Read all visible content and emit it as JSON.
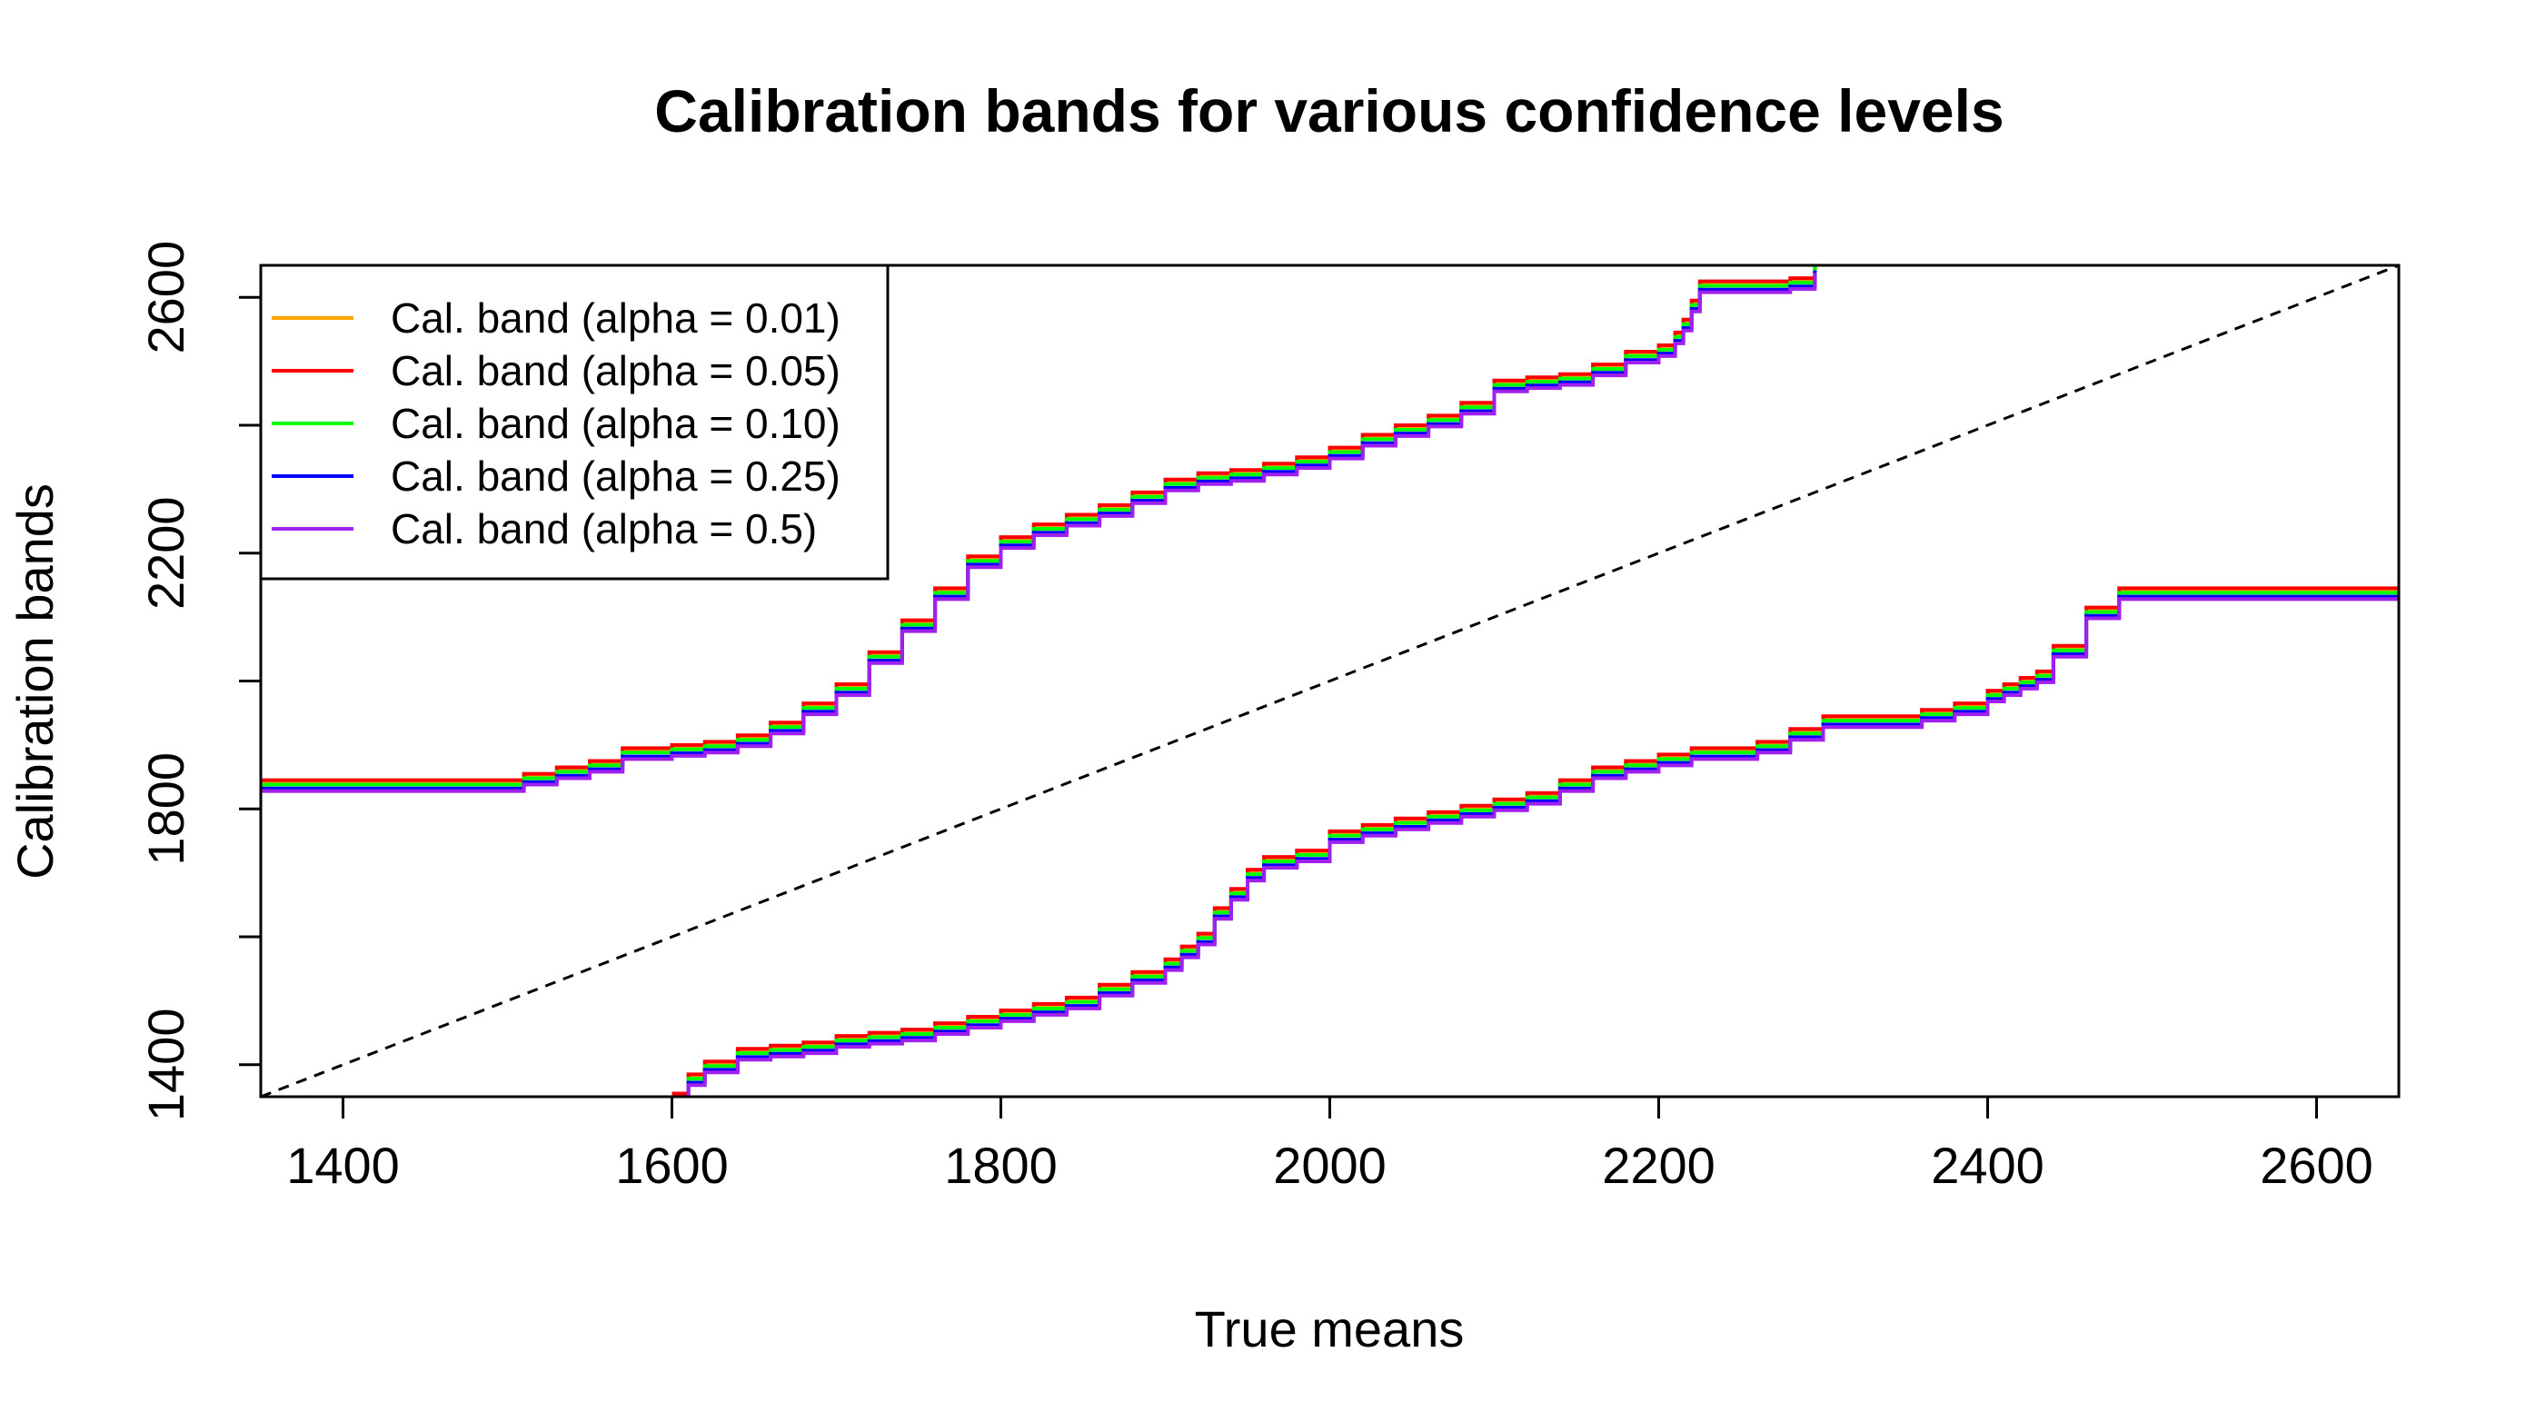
{
  "chart_data": {
    "type": "line",
    "title": "Calibration bands for various confidence levels",
    "xlabel": "True means",
    "ylabel": "Calibration bands",
    "xlim": [
      1350,
      2650
    ],
    "ylim": [
      1350,
      2650
    ],
    "x_ticks": [
      "1400",
      "1600",
      "1800",
      "2000",
      "2200",
      "2400",
      "2600"
    ],
    "y_ticks": [
      "1400",
      "1800",
      "2200",
      "2600"
    ],
    "y_minor_ticks": [
      1400,
      1600,
      1800,
      2000,
      2200,
      2400,
      2600
    ],
    "legend_position": "top-left",
    "reference_line": {
      "name": "identity",
      "style": "dashed",
      "color": "#000000",
      "x": [
        1350,
        2650
      ],
      "y": [
        1350,
        2650
      ]
    },
    "base_upper": {
      "x": [
        1350,
        1500,
        1510,
        1530,
        1550,
        1570,
        1600,
        1620,
        1640,
        1660,
        1680,
        1700,
        1720,
        1740,
        1760,
        1780,
        1800,
        1820,
        1840,
        1860,
        1880,
        1900,
        1920,
        1940,
        1960,
        1980,
        2000,
        2020,
        2040,
        2060,
        2080,
        2100,
        2120,
        2140,
        2160,
        2180,
        2200,
        2210,
        2215,
        2220,
        2225,
        2240,
        2260,
        2280,
        2295
      ],
      "y": [
        1840,
        1840,
        1850,
        1860,
        1870,
        1890,
        1895,
        1900,
        1910,
        1930,
        1960,
        1990,
        2040,
        2090,
        2140,
        2190,
        2220,
        2240,
        2255,
        2270,
        2290,
        2310,
        2320,
        2325,
        2335,
        2345,
        2360,
        2380,
        2395,
        2410,
        2430,
        2465,
        2470,
        2475,
        2490,
        2510,
        2520,
        2540,
        2560,
        2590,
        2620,
        2620,
        2620,
        2625,
        2650
      ]
    },
    "base_lower": {
      "x": [
        1600,
        1610,
        1620,
        1640,
        1660,
        1680,
        1700,
        1720,
        1740,
        1760,
        1780,
        1800,
        1820,
        1840,
        1860,
        1880,
        1900,
        1910,
        1920,
        1930,
        1940,
        1950,
        1960,
        1980,
        2000,
        2020,
        2040,
        2060,
        2080,
        2100,
        2120,
        2140,
        2160,
        2180,
        2200,
        2220,
        2240,
        2260,
        2280,
        2300,
        2320,
        2340,
        2360,
        2380,
        2400,
        2410,
        2420,
        2430,
        2440,
        2460,
        2480,
        2650
      ],
      "y": [
        1350,
        1380,
        1400,
        1420,
        1425,
        1430,
        1440,
        1445,
        1450,
        1460,
        1470,
        1480,
        1490,
        1500,
        1520,
        1540,
        1560,
        1580,
        1600,
        1640,
        1670,
        1700,
        1720,
        1730,
        1760,
        1770,
        1780,
        1790,
        1800,
        1810,
        1820,
        1840,
        1860,
        1870,
        1880,
        1890,
        1890,
        1900,
        1920,
        1940,
        1940,
        1940,
        1950,
        1960,
        1980,
        1990,
        2000,
        2010,
        2050,
        2110,
        2140,
        2140
      ]
    },
    "series": [
      {
        "name": "Cal. band (alpha = 0.01)",
        "color": "#FFA500",
        "offset": 0
      },
      {
        "name": "Cal. band (alpha = 0.05)",
        "color": "#FF0000",
        "offset": 5
      },
      {
        "name": "Cal. band (alpha = 0.10)",
        "color": "#00FF00",
        "offset": -2
      },
      {
        "name": "Cal. band (alpha = 0.25)",
        "color": "#0000FF",
        "offset": -8
      },
      {
        "name": "Cal. band (alpha = 0.5)",
        "color": "#A020F0",
        "offset": -12
      }
    ]
  }
}
